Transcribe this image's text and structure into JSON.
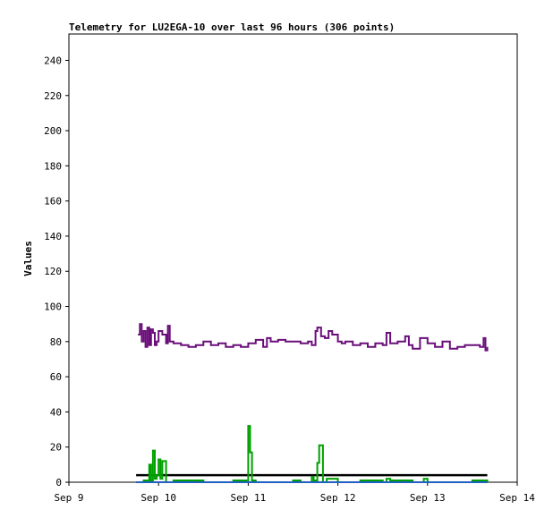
{
  "chart_data": {
    "type": "line",
    "title": "Telemetry for LU2EGA-10 over last 96 hours (306 points)",
    "xlabel": "",
    "ylabel": "Values",
    "ylim": [
      0,
      255
    ],
    "yticks": [
      0,
      20,
      40,
      60,
      80,
      100,
      120,
      140,
      160,
      180,
      200,
      220,
      240
    ],
    "xlim": [
      "2023-09-09T00:00",
      "2023-09-14T00:00"
    ],
    "xticks": [
      "Sep 9",
      "Sep 10",
      "Sep 11",
      "Sep 12",
      "Sep 13",
      "Sep 14"
    ],
    "grid": false,
    "legend": "none",
    "series": [
      {
        "color": "#6a0f7a",
        "x": [
          "2023-09-09T18:30",
          "2023-09-09T19:00",
          "2023-09-09T19:30",
          "2023-09-09T20:00",
          "2023-09-09T20:30",
          "2023-09-09T21:00",
          "2023-09-09T21:30",
          "2023-09-09T22:00",
          "2023-09-09T22:30",
          "2023-09-09T23:00",
          "2023-09-09T23:30",
          "2023-09-10T00:00",
          "2023-09-10T01:00",
          "2023-09-10T02:00",
          "2023-09-10T02:30",
          "2023-09-10T03:00",
          "2023-09-10T04:00",
          "2023-09-10T06:00",
          "2023-09-10T08:00",
          "2023-09-10T10:00",
          "2023-09-10T12:00",
          "2023-09-10T14:00",
          "2023-09-10T16:00",
          "2023-09-10T18:00",
          "2023-09-10T20:00",
          "2023-09-10T22:00",
          "2023-09-11T00:00",
          "2023-09-11T02:00",
          "2023-09-11T04:00",
          "2023-09-11T05:00",
          "2023-09-11T06:00",
          "2023-09-11T08:00",
          "2023-09-11T10:00",
          "2023-09-11T12:00",
          "2023-09-11T14:00",
          "2023-09-11T16:00",
          "2023-09-11T17:00",
          "2023-09-11T18:00",
          "2023-09-11T18:30",
          "2023-09-11T19:30",
          "2023-09-11T20:30",
          "2023-09-11T21:30",
          "2023-09-11T22:30",
          "2023-09-12T00:00",
          "2023-09-12T01:00",
          "2023-09-12T02:00",
          "2023-09-12T04:00",
          "2023-09-12T06:00",
          "2023-09-12T08:00",
          "2023-09-12T10:00",
          "2023-09-12T12:00",
          "2023-09-12T13:00",
          "2023-09-12T14:00",
          "2023-09-12T16:00",
          "2023-09-12T18:00",
          "2023-09-12T19:00",
          "2023-09-12T20:00",
          "2023-09-12T22:00",
          "2023-09-13T00:00",
          "2023-09-13T02:00",
          "2023-09-13T04:00",
          "2023-09-13T06:00",
          "2023-09-13T08:00",
          "2023-09-13T10:00",
          "2023-09-13T12:00",
          "2023-09-13T14:00",
          "2023-09-13T15:00",
          "2023-09-13T15:30",
          "2023-09-13T16:00"
        ],
        "values": [
          84,
          90,
          80,
          86,
          77,
          88,
          78,
          87,
          85,
          78,
          80,
          86,
          84,
          79,
          89,
          80,
          79,
          78,
          77,
          78,
          80,
          78,
          79,
          77,
          78,
          77,
          79,
          81,
          77,
          82,
          80,
          81,
          80,
          80,
          79,
          80,
          78,
          86,
          88,
          83,
          82,
          86,
          84,
          80,
          79,
          80,
          78,
          79,
          77,
          79,
          78,
          85,
          79,
          80,
          83,
          78,
          76,
          82,
          79,
          77,
          80,
          76,
          77,
          78,
          78,
          77,
          82,
          75,
          77
        ]
      },
      {
        "color": "#000000",
        "x": [
          "2023-09-09T18:00",
          "2023-09-13T16:00"
        ],
        "values": [
          4,
          4
        ]
      },
      {
        "color": "#00a000",
        "x": [
          "2023-09-09T18:00",
          "2023-09-09T20:00",
          "2023-09-09T21:00",
          "2023-09-09T21:30",
          "2023-09-09T22:00",
          "2023-09-09T22:30",
          "2023-09-09T23:00",
          "2023-09-09T23:30",
          "2023-09-10T00:00",
          "2023-09-10T00:30",
          "2023-09-10T01:00",
          "2023-09-10T02:00",
          "2023-09-10T04:00",
          "2023-09-10T12:00",
          "2023-09-10T20:00",
          "2023-09-10T23:30",
          "2023-09-11T00:00",
          "2023-09-11T00:30",
          "2023-09-11T01:00",
          "2023-09-11T02:00",
          "2023-09-11T10:00",
          "2023-09-11T12:00",
          "2023-09-11T14:00",
          "2023-09-11T16:00",
          "2023-09-11T17:00",
          "2023-09-11T17:30",
          "2023-09-11T18:00",
          "2023-09-11T18:30",
          "2023-09-11T19:00",
          "2023-09-11T20:00",
          "2023-09-11T21:00",
          "2023-09-12T00:00",
          "2023-09-12T06:00",
          "2023-09-12T12:00",
          "2023-09-12T13:00",
          "2023-09-12T14:00",
          "2023-09-12T20:00",
          "2023-09-12T22:00",
          "2023-09-12T23:00",
          "2023-09-13T00:00",
          "2023-09-13T06:00",
          "2023-09-13T12:00",
          "2023-09-13T16:00"
        ],
        "values": [
          0,
          1,
          0,
          10,
          1,
          18,
          2,
          4,
          13,
          2,
          12,
          0,
          1,
          0,
          1,
          0,
          32,
          17,
          1,
          0,
          0,
          1,
          0,
          0,
          3,
          1,
          0,
          11,
          21,
          0,
          2,
          0,
          1,
          0,
          2,
          1,
          0,
          0,
          2,
          0,
          0,
          1,
          0
        ]
      },
      {
        "color": "#2060c0",
        "x": [
          "2023-09-09T18:00",
          "2023-09-13T16:00"
        ],
        "values": [
          0,
          0
        ]
      }
    ]
  }
}
